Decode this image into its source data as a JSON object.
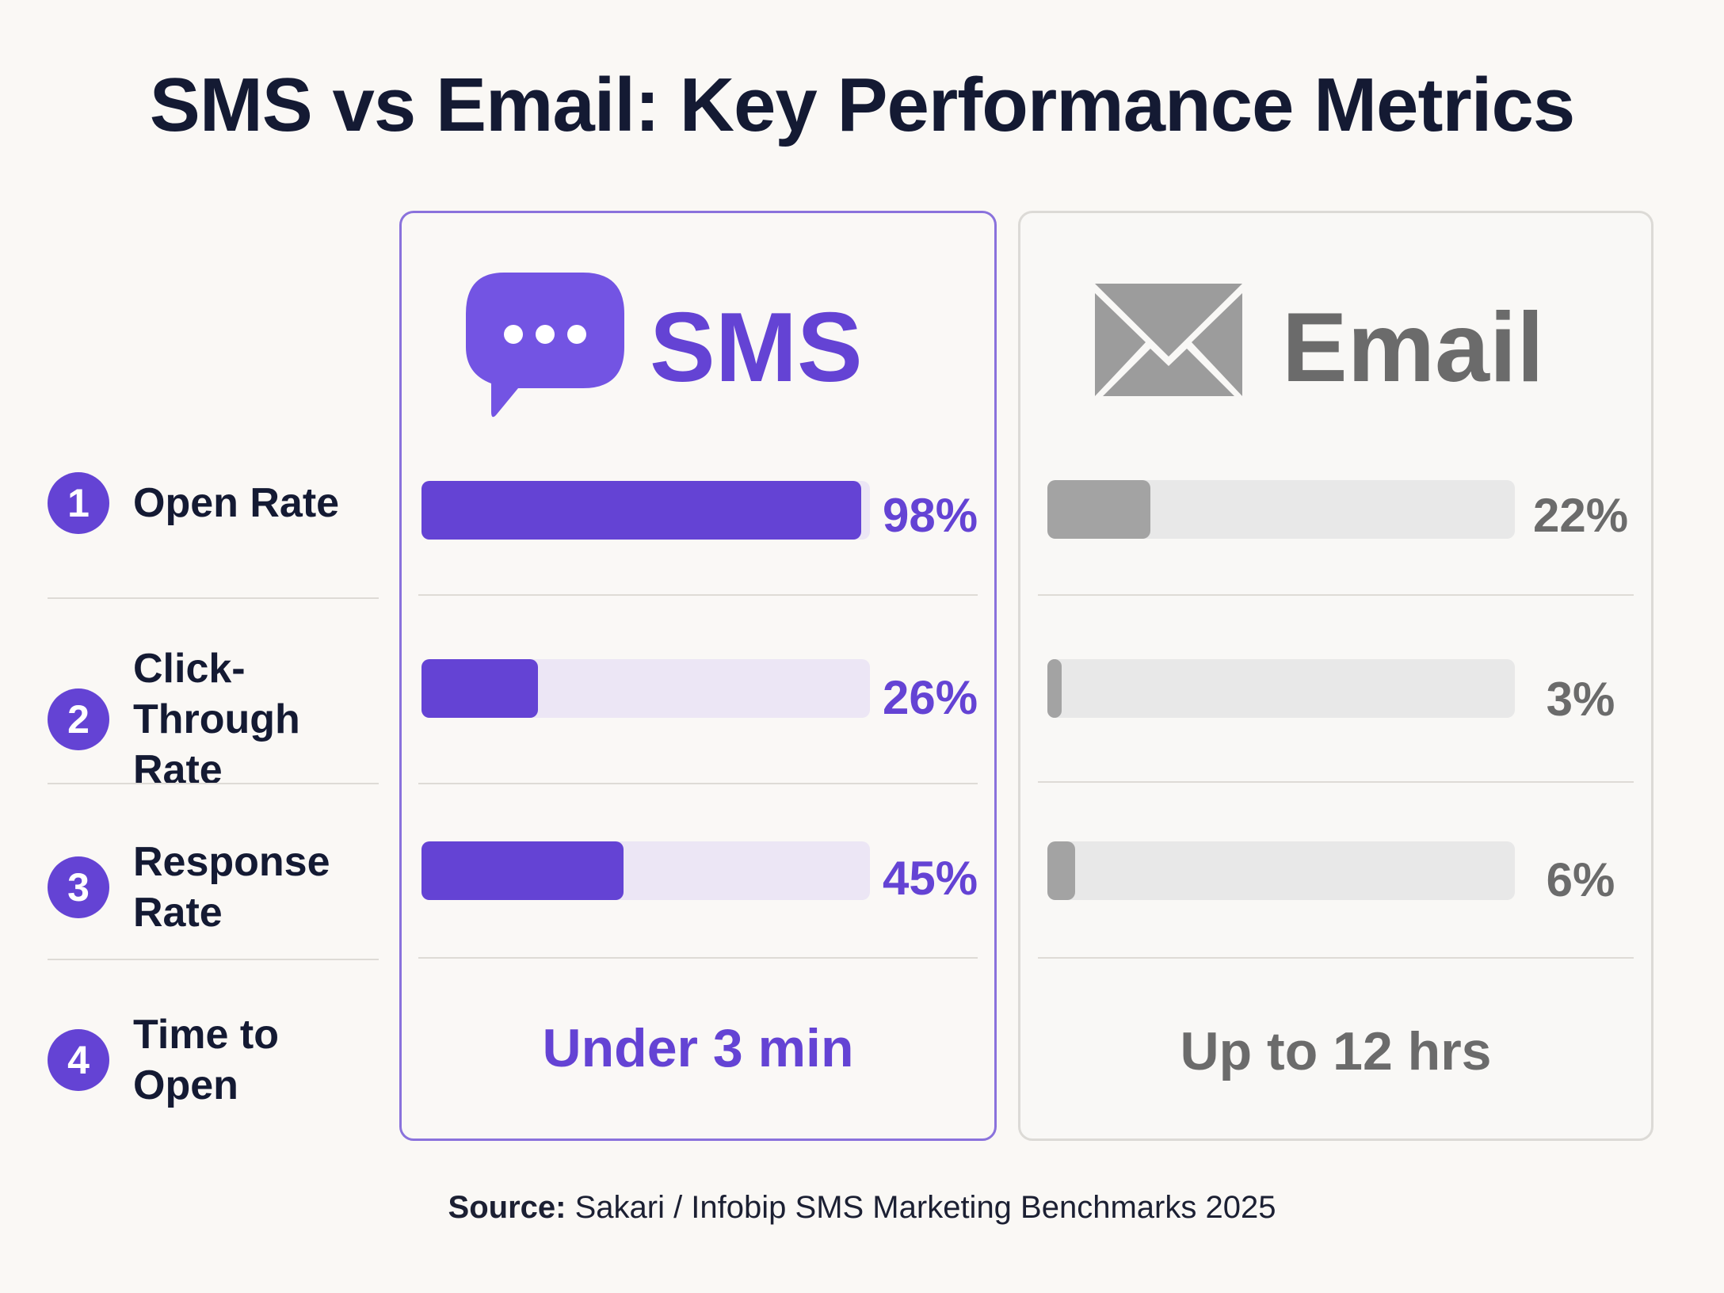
{
  "title": "SMS vs Email: Key Performance Metrics",
  "colors": {
    "sms_accent": "#6443d4",
    "sms_track": "#ece6f5",
    "email_fill": "#a3a3a3",
    "email_track": "#e8e8e8",
    "email_text": "#6b6b6b"
  },
  "metrics": [
    {
      "number": "1",
      "label_lines": [
        "Open Rate"
      ]
    },
    {
      "number": "2",
      "label_lines": [
        "Click-Through",
        "Rate"
      ]
    },
    {
      "number": "3",
      "label_lines": [
        "Response Rate"
      ]
    },
    {
      "number": "4",
      "label_lines": [
        "Time to Open"
      ]
    }
  ],
  "chart_data": {
    "type": "bar",
    "orientation": "horizontal",
    "title": "SMS vs Email: Key Performance Metrics",
    "categories": [
      "Open Rate",
      "Click-Through Rate",
      "Response Rate"
    ],
    "unit": "%",
    "ylim": [
      0,
      100
    ],
    "series": [
      {
        "name": "SMS",
        "icon": "chat-bubble-icon",
        "values": [
          98,
          26,
          45
        ],
        "labels": [
          "98%",
          "26%",
          "45%"
        ],
        "time_to_open": "Under 3 min"
      },
      {
        "name": "Email",
        "icon": "envelope-icon",
        "values": [
          22,
          3,
          6
        ],
        "labels": [
          "22%",
          "3%",
          "6%"
        ],
        "time_to_open": "Up to 12 hrs"
      }
    ]
  },
  "source": {
    "prefix": "Source:",
    "text": " Sakari / Infobip SMS Marketing Benchmarks 2025"
  }
}
